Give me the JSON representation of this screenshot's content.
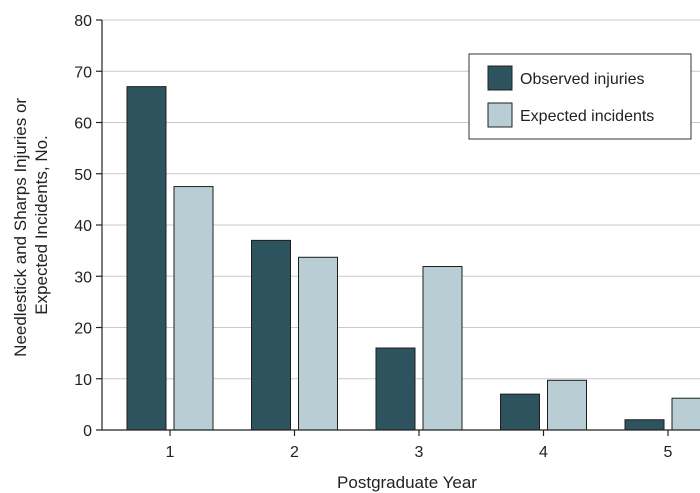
{
  "chart_data": {
    "type": "bar",
    "categories": [
      "1",
      "2",
      "3",
      "4",
      "5"
    ],
    "series": [
      {
        "name": "Observed injuries",
        "values": [
          67,
          37,
          16,
          7,
          2
        ],
        "color": "#2d545e"
      },
      {
        "name": "Expected incidents",
        "values": [
          47.5,
          33.7,
          31.9,
          9.7,
          6.2
        ],
        "color": "#b9cdd5"
      }
    ],
    "xlabel": "Postgraduate Year",
    "ylabel_lines": [
      "Needlestick and Sharps Injuries or",
      "Expected Incidents, No."
    ],
    "ylim": [
      0,
      80
    ],
    "yticks": [
      0,
      10,
      20,
      30,
      40,
      50,
      60,
      70,
      80
    ],
    "grid": true,
    "legend_position": "top-right"
  }
}
